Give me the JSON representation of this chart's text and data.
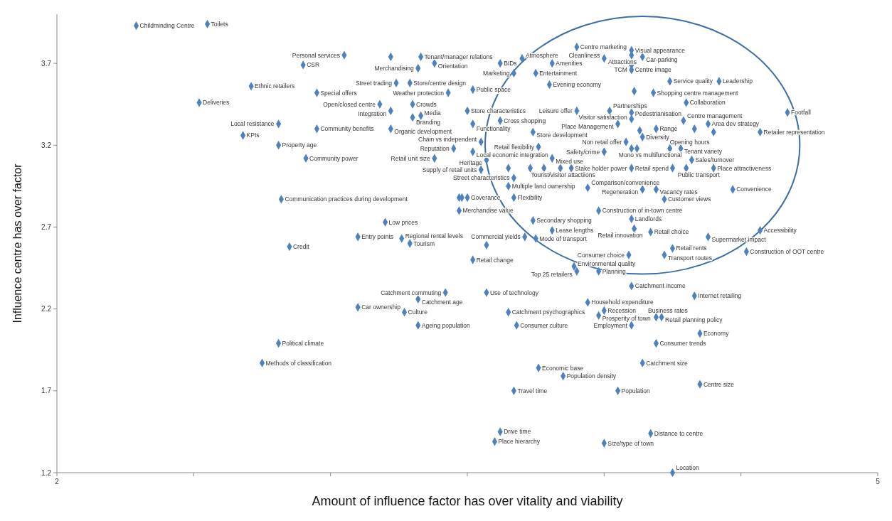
{
  "chart_data": {
    "type": "scatter",
    "xlabel": "Amount of influence factor has over vitality and viability",
    "ylabel": "Influence centre has over factor",
    "xlim": [
      2,
      5
    ],
    "ylim": [
      1.2,
      4.0
    ],
    "xticks": [
      2,
      {
        "value": 2.5,
        "label": null
      },
      {
        "value": 3,
        "label": null
      },
      {
        "value": 3.5,
        "label": null
      },
      {
        "value": 4,
        "label": null
      },
      {
        "value": 4.5,
        "label": null
      },
      5
    ],
    "yticks": [
      1.2,
      1.7,
      2.2,
      2.7,
      3.2,
      3.7
    ],
    "marker": "diamond",
    "series": [
      {
        "color": "#4f81bd",
        "x": [
          2.29,
          2.55,
          3.05,
          3.22,
          3.33,
          3.32,
          3.38,
          3.62,
          3.7,
          3.67,
          3.75,
          3.81,
          3.9,
          4.0,
          4.1,
          4.1,
          4.14,
          4.1,
          4.1,
          4.24,
          4.42,
          2.9,
          2.71,
          2.95,
          3.24,
          3.29,
          3.43,
          3.52,
          3.8,
          4.11,
          4.18,
          2.52,
          3.18,
          3.3,
          3.22,
          3.5,
          3.9,
          4.02,
          4.1,
          4.3,
          4.1,
          2.81,
          3.3,
          3.33,
          3.52,
          3.62,
          4.05,
          4.29,
          4.38,
          4.67,
          2.95,
          3.22,
          3.74,
          4.19,
          4.13,
          4.33,
          4.4,
          4.57,
          2.68,
          4.14,
          2.81,
          3.45,
          3.55,
          4.08,
          3.76,
          4.1,
          4.12,
          4.24,
          4.28,
          3.52,
          4.0,
          2.91,
          3.38,
          3.57,
          3.81,
          4.32,
          3.55,
          3.65,
          3.73,
          3.78,
          3.84,
          3.88,
          4.1,
          4.25,
          4.3,
          4.4,
          3.67,
          3.65,
          3.94,
          4.14,
          4.19,
          4.47,
          2.82,
          3.5,
          3.47,
          3.48,
          3.67,
          4.22,
          3.98,
          3.47,
          3.74,
          4.1,
          3.2,
          3.81,
          4.11,
          4.57,
          4.17,
          3.71,
          3.1,
          4.38,
          3.26,
          3.75,
          3.29,
          3.57,
          2.85,
          4.25,
          4.52,
          4.09,
          4.22,
          3.52,
          3.89,
          3.9,
          3.98,
          4.1,
          3.42,
          3.57,
          4.33,
          3.32,
          3.94,
          3.1,
          4.0,
          3.27,
          3.65,
          3.98,
          4.19,
          4.21,
          3.32,
          3.68,
          4.1,
          4.35,
          2.81,
          4.19,
          2.75,
          4.14,
          3.76,
          3.85,
          4.35,
          3.67,
          4.05,
          3.62,
          4.17,
          3.6,
          4.0,
          4.25
        ],
        "values": [
          3.93,
          3.94,
          3.75,
          3.74,
          3.74,
          3.67,
          3.7,
          3.7,
          3.73,
          3.64,
          3.64,
          3.7,
          3.8,
          3.73,
          3.78,
          3.75,
          3.74,
          3.69,
          3.66,
          3.59,
          3.59,
          3.69,
          3.56,
          3.52,
          3.58,
          3.58,
          3.52,
          3.54,
          3.57,
          3.53,
          3.52,
          3.46,
          3.45,
          3.45,
          3.41,
          3.41,
          3.41,
          3.41,
          3.4,
          3.46,
          3.36,
          3.33,
          3.37,
          3.38,
          3.33,
          3.35,
          3.33,
          3.35,
          3.33,
          3.4,
          3.3,
          3.3,
          3.28,
          3.3,
          3.29,
          3.3,
          3.28,
          3.28,
          3.26,
          3.25,
          3.2,
          3.18,
          3.22,
          3.22,
          3.19,
          3.18,
          3.18,
          3.18,
          3.18,
          3.16,
          3.16,
          3.12,
          3.12,
          3.11,
          3.12,
          3.11,
          3.05,
          3.06,
          3.06,
          3.06,
          3.06,
          3.06,
          3.06,
          3.06,
          3.06,
          3.06,
          3.0,
          2.95,
          2.94,
          2.93,
          2.93,
          2.93,
          2.87,
          2.88,
          2.88,
          2.88,
          2.88,
          2.87,
          2.8,
          2.8,
          2.74,
          2.75,
          2.73,
          2.68,
          2.69,
          2.68,
          2.67,
          2.64,
          2.64,
          2.64,
          2.63,
          2.63,
          2.6,
          2.59,
          2.58,
          2.57,
          2.55,
          2.53,
          2.53,
          2.5,
          2.46,
          2.43,
          2.43,
          2.34,
          2.3,
          2.3,
          2.28,
          2.26,
          2.24,
          2.21,
          2.19,
          2.18,
          2.18,
          2.16,
          2.15,
          2.15,
          2.1,
          2.1,
          2.1,
          2.05,
          1.99,
          1.99,
          1.87,
          1.87,
          1.84,
          1.79,
          1.74,
          1.7,
          1.7,
          1.45,
          1.44,
          1.39,
          1.38,
          1.2
        ],
        "value_labels": [
          "Childminding Centre",
          "Toilets",
          "Personal services",
          null,
          "Tenant/manager relations",
          "Merchandising",
          "Orientation",
          "BIDs",
          "Atmosphere",
          "Marketing",
          "Entertainment",
          "Amenities",
          "Centre marketing",
          "Cleanliness",
          "Visual appearance",
          "Attractions",
          "Car-parking",
          "Centre image",
          "TCM",
          "Service quality",
          "Leadership",
          "CSR",
          "Ethnic retailers",
          "Special offers",
          "Street trading",
          "Store/centre design",
          "Weather protection",
          "Public space",
          "Evening economy",
          null,
          "Shopping centre management",
          "Deliveries",
          "Open/closed centre",
          "Crowds",
          "Integration",
          "Store characteristics",
          "Leisure offer",
          "Partnerships",
          "Visitor satisfaction",
          "Collaboration",
          "Pedestrianisation",
          "Local resistance",
          "Branding",
          "Media",
          "Functionality",
          "Cross shopping",
          "Place Management",
          "Centre management",
          "Area dev strategy",
          "Footfall",
          "Community benefits",
          "Organic development",
          "Store development",
          "Range",
          null,
          null,
          null,
          "Retailer representation",
          "KPIs",
          "Diversity",
          "Property age",
          "Reputation",
          "Chain vs independent",
          "Non retail offer",
          "Retail flexibility",
          "Mono vs multifunctional",
          null,
          "Opening hours",
          "Tenant variety",
          "Local economic integration",
          "Safety/crime",
          "Community power",
          "Retail unit size",
          "Heritage",
          "Mixed use",
          "Sales/turnover",
          "Supply of retail units",
          null,
          null,
          "Tourist/visitor attactiions",
          null,
          "Stake holder power",
          "Retail spend",
          null,
          "Public transport",
          "Place attractiveness",
          "Street characteristics",
          "Multiple land ownership",
          "Comparison/convenience",
          "Regeneration",
          "Vacancy rates",
          "Convenience",
          "Communication practices during development",
          "Goverance",
          null,
          null,
          "Flexibility",
          "Customer views",
          "Construction of in-town centre",
          "Merchandise value",
          "Secondary shopping",
          "Landlords",
          "Low prices",
          "Lease lengths",
          "Retail innovation",
          "Accessibility",
          "Retail choice",
          "Commercial yields",
          "Entry points",
          "Supermarket impact",
          "Regional rental levels",
          "Mode of transport",
          "Tourism",
          null,
          "Credit",
          "Retail rents",
          "Construction of OOT centre",
          "Consumer choice",
          "Transport routes",
          "Retail change",
          "Environmental quality",
          "Top 25 retailers",
          "Planning",
          "Catchment income",
          "Catchment commuting",
          "Use of technology",
          "Internet retailing",
          "Catchment age",
          "Household expenditure",
          "Car ownership",
          "Recession",
          "Culture",
          "Catchment psychographics",
          "Prosperity of town",
          "Business rates",
          "Retail planning policy",
          "Ageing population",
          "Consumer culture",
          "Employment",
          "Economy",
          "Political climate",
          "Consumer trends",
          "Methods of classification",
          "Catchment size",
          "Economic base",
          "Population density",
          "Centre size",
          "Travel time",
          "Population",
          "Drive time",
          "Distance to centre",
          "Place hierarchy",
          "Size/type of town",
          "Location"
        ]
      }
    ]
  }
}
